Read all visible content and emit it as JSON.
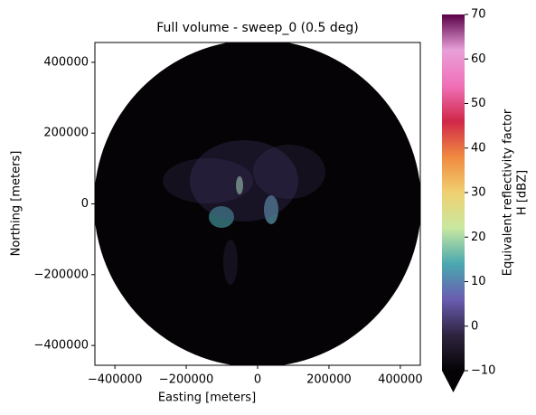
{
  "chart_data": {
    "type": "radar-image",
    "title": "Full volume - sweep_0 (0.5 deg)",
    "xlabel": "Easting [meters]",
    "ylabel": "Northing [meters]",
    "xlim": [
      -456000,
      456000
    ],
    "ylim": [
      -456000,
      456000
    ],
    "xticks": [
      {
        "value": -400000,
        "label": "−400000"
      },
      {
        "value": -200000,
        "label": "−200000"
      },
      0,
      200000,
      400000
    ],
    "yticks": [
      {
        "value": -400000,
        "label": "−400000"
      },
      {
        "value": -200000,
        "label": "−200000"
      },
      0,
      200000,
      400000
    ],
    "colorbar_label": [
      "Equivalent reflectivity factor",
      "H [dBZ]"
    ],
    "clim": [
      -10,
      70
    ],
    "cticks": [
      {
        "value": -10,
        "label": "−10"
      },
      0,
      10,
      20,
      30,
      40,
      50,
      60,
      70
    ],
    "colormap": [
      "#050305",
      "#2e2440",
      "#6a5cb0",
      "#4aa8b0",
      "#c8e8a0",
      "#f0d070",
      "#f08a40",
      "#d02848",
      "#f070b8",
      "#e8a0d8",
      "#5a0048"
    ]
  }
}
